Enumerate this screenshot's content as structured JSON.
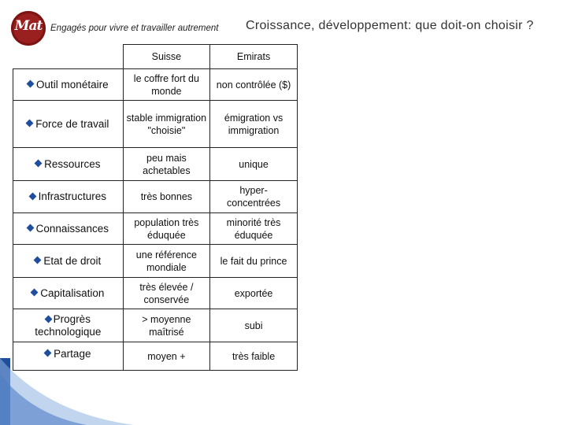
{
  "header": {
    "tagline": "Engagés pour vivre et travailler autrement",
    "title": "Croissance, développement: que doit-on choisir ?",
    "logo_text": "Mat"
  },
  "table": {
    "columns": [
      "",
      "Suisse",
      "Emirats"
    ],
    "rows": [
      {
        "label": "Outil monétaire",
        "suisse": "le coffre fort du monde",
        "emirats": "non contrôlée ($)"
      },
      {
        "label": "Force de travail",
        "suisse": "stable immigration \"choisie\"",
        "emirats": "émigration vs immigration"
      },
      {
        "label": "Ressources",
        "suisse": "peu mais achetables",
        "emirats": "unique"
      },
      {
        "label": "Infrastructures",
        "suisse": "très bonnes",
        "emirats": "hyper-concentrées"
      },
      {
        "label": "Connaissances",
        "suisse": "population très éduquée",
        "emirats": "minorité très éduquée"
      },
      {
        "label": "Etat de droit",
        "suisse": "une référence mondiale",
        "emirats": "le fait du prince"
      },
      {
        "label": "Capitalisation",
        "suisse": "très élevée / conservée",
        "emirats": "exportée"
      },
      {
        "label": "Progrès technologique",
        "suisse": "> moyenne maîtrisé",
        "emirats": "subi"
      },
      {
        "label": "Partage",
        "suisse": "moyen +",
        "emirats": "très faible"
      }
    ]
  },
  "colors": {
    "bullet": "#1f4e9c",
    "logo": "#9a1f1f",
    "accent_blue": "#1f4e9c"
  },
  "icons": {
    "bullet": "diamond-bullet-icon",
    "logo": "mat-logo-icon"
  }
}
